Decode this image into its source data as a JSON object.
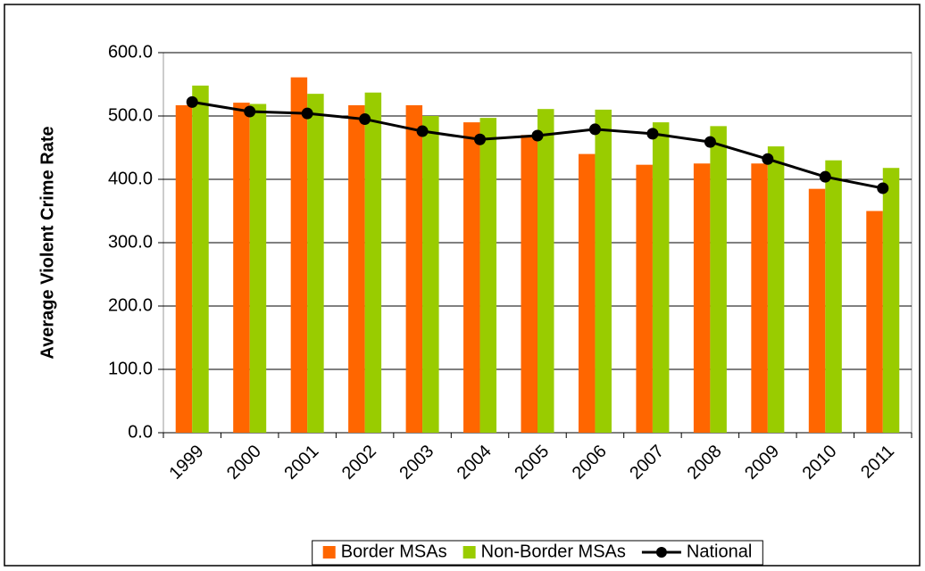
{
  "chart_data": {
    "type": "bar",
    "y_label": "Average Violent Crime Rate",
    "categories": [
      "1999",
      "2000",
      "2001",
      "2002",
      "2003",
      "2004",
      "2005",
      "2006",
      "2007",
      "2008",
      "2009",
      "2010",
      "2011"
    ],
    "series": [
      {
        "name": "Border MSAs",
        "color": "#ff6600",
        "values": [
          517,
          521,
          561,
          517,
          517,
          490,
          470,
          440,
          423,
          425,
          425,
          385,
          350
        ]
      },
      {
        "name": "Non-Border MSAs",
        "color": "#99cc00",
        "values": [
          548,
          519,
          535,
          537,
          500,
          497,
          511,
          510,
          490,
          484,
          452,
          430,
          418
        ]
      },
      {
        "name": "National",
        "color": "#000000",
        "type": "line",
        "values": [
          522,
          507,
          504,
          495,
          476,
          463,
          469,
          479,
          472,
          459,
          432,
          404,
          386
        ]
      }
    ],
    "ylim": [
      0,
      600
    ],
    "yticks": [
      {
        "value": 0,
        "label": "0.0"
      },
      {
        "value": 100,
        "label": "100.0"
      },
      {
        "value": 200,
        "label": "200.0"
      },
      {
        "value": 300,
        "label": "300.0"
      },
      {
        "value": 400,
        "label": "400.0"
      },
      {
        "value": 500,
        "label": "500.0"
      },
      {
        "value": 600,
        "label": "600.0"
      }
    ],
    "grid": true,
    "legend": "bottom"
  }
}
